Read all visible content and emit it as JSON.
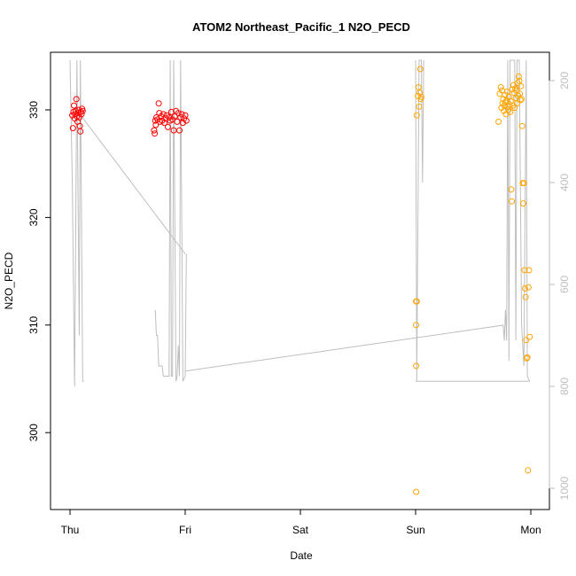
{
  "chart_data": {
    "type": "scatter",
    "title": "ATOM2 Northeast_Pacific_1 N2O_PECD",
    "xlabel": "Date",
    "ylabel": "N2O_PECD",
    "x_ticks": [
      "Thu",
      "Fri",
      "Sat",
      "Sun",
      "Mon"
    ],
    "ylim": [
      292.5,
      335
    ],
    "y_ticks": [
      300,
      310,
      320,
      330
    ],
    "secondary_axis": {
      "side": "right",
      "reversed": true,
      "ylim": [
        1020,
        160
      ],
      "ticks": [
        200,
        400,
        600,
        800,
        1000
      ],
      "color": "#bebebe"
    },
    "grid": false,
    "colors": {
      "red": "#ff0000",
      "orange": "#ffa500",
      "trace": "#bebebe"
    },
    "points": [
      {
        "x": 0.02,
        "y": 329.5,
        "c": "red"
      },
      {
        "x": 0.025,
        "y": 328.3,
        "c": "red"
      },
      {
        "x": 0.03,
        "y": 329.8,
        "c": "red"
      },
      {
        "x": 0.035,
        "y": 330.4,
        "c": "red"
      },
      {
        "x": 0.04,
        "y": 329.2,
        "c": "red"
      },
      {
        "x": 0.045,
        "y": 329.6,
        "c": "red"
      },
      {
        "x": 0.05,
        "y": 329.9,
        "c": "red"
      },
      {
        "x": 0.055,
        "y": 331.0,
        "c": "red"
      },
      {
        "x": 0.06,
        "y": 329.4,
        "c": "red"
      },
      {
        "x": 0.065,
        "y": 328.9,
        "c": "red"
      },
      {
        "x": 0.07,
        "y": 329.7,
        "c": "red"
      },
      {
        "x": 0.075,
        "y": 330.0,
        "c": "red"
      },
      {
        "x": 0.08,
        "y": 329.3,
        "c": "red"
      },
      {
        "x": 0.085,
        "y": 328.5,
        "c": "red"
      },
      {
        "x": 0.09,
        "y": 328.0,
        "c": "red"
      },
      {
        "x": 0.095,
        "y": 329.8,
        "c": "red"
      },
      {
        "x": 0.1,
        "y": 329.6,
        "c": "red"
      },
      {
        "x": 0.105,
        "y": 330.1,
        "c": "red"
      },
      {
        "x": 0.11,
        "y": 329.9,
        "c": "red"
      },
      {
        "x": 0.73,
        "y": 328.1,
        "c": "red"
      },
      {
        "x": 0.735,
        "y": 327.8,
        "c": "red"
      },
      {
        "x": 0.74,
        "y": 329.0,
        "c": "red"
      },
      {
        "x": 0.745,
        "y": 328.6,
        "c": "red"
      },
      {
        "x": 0.75,
        "y": 329.3,
        "c": "red"
      },
      {
        "x": 0.76,
        "y": 329.1,
        "c": "red"
      },
      {
        "x": 0.77,
        "y": 330.6,
        "c": "red"
      },
      {
        "x": 0.775,
        "y": 329.7,
        "c": "red"
      },
      {
        "x": 0.78,
        "y": 328.9,
        "c": "red"
      },
      {
        "x": 0.79,
        "y": 329.4,
        "c": "red"
      },
      {
        "x": 0.8,
        "y": 329.0,
        "c": "red"
      },
      {
        "x": 0.81,
        "y": 329.6,
        "c": "red"
      },
      {
        "x": 0.82,
        "y": 328.8,
        "c": "red"
      },
      {
        "x": 0.83,
        "y": 329.2,
        "c": "red"
      },
      {
        "x": 0.84,
        "y": 329.5,
        "c": "red"
      },
      {
        "x": 0.85,
        "y": 328.4,
        "c": "red"
      },
      {
        "x": 0.86,
        "y": 329.3,
        "c": "red"
      },
      {
        "x": 0.87,
        "y": 329.0,
        "c": "red"
      },
      {
        "x": 0.88,
        "y": 329.8,
        "c": "red"
      },
      {
        "x": 0.89,
        "y": 329.1,
        "c": "red"
      },
      {
        "x": 0.9,
        "y": 328.1,
        "c": "red"
      },
      {
        "x": 0.91,
        "y": 329.4,
        "c": "red"
      },
      {
        "x": 0.92,
        "y": 329.9,
        "c": "red"
      },
      {
        "x": 0.93,
        "y": 328.9,
        "c": "red"
      },
      {
        "x": 0.94,
        "y": 329.7,
        "c": "red"
      },
      {
        "x": 0.95,
        "y": 328.1,
        "c": "red"
      },
      {
        "x": 0.96,
        "y": 329.3,
        "c": "red"
      },
      {
        "x": 0.97,
        "y": 329.6,
        "c": "red"
      },
      {
        "x": 0.98,
        "y": 328.8,
        "c": "red"
      },
      {
        "x": 0.99,
        "y": 329.2,
        "c": "red"
      },
      {
        "x": 1.0,
        "y": 329.5,
        "c": "red"
      },
      {
        "x": 1.01,
        "y": 329.0,
        "c": "red"
      },
      {
        "x": 3.005,
        "y": 294.5,
        "c": "orange"
      },
      {
        "x": 3.005,
        "y": 306.2,
        "c": "orange"
      },
      {
        "x": 3.005,
        "y": 310.0,
        "c": "orange"
      },
      {
        "x": 3.005,
        "y": 312.2,
        "c": "orange"
      },
      {
        "x": 3.01,
        "y": 312.2,
        "c": "orange"
      },
      {
        "x": 3.01,
        "y": 329.5,
        "c": "orange"
      },
      {
        "x": 3.02,
        "y": 331.3,
        "c": "orange"
      },
      {
        "x": 3.025,
        "y": 332.1,
        "c": "orange"
      },
      {
        "x": 3.03,
        "y": 330.3,
        "c": "orange"
      },
      {
        "x": 3.035,
        "y": 331.6,
        "c": "orange"
      },
      {
        "x": 3.04,
        "y": 333.8,
        "c": "orange"
      },
      {
        "x": 3.045,
        "y": 331.0,
        "c": "orange"
      },
      {
        "x": 3.05,
        "y": 331.2,
        "c": "orange"
      },
      {
        "x": 3.72,
        "y": 328.9,
        "c": "orange"
      },
      {
        "x": 3.73,
        "y": 331.5,
        "c": "orange"
      },
      {
        "x": 3.74,
        "y": 332.1,
        "c": "orange"
      },
      {
        "x": 3.745,
        "y": 330.2,
        "c": "orange"
      },
      {
        "x": 3.75,
        "y": 331.8,
        "c": "orange"
      },
      {
        "x": 3.755,
        "y": 330.6,
        "c": "orange"
      },
      {
        "x": 3.76,
        "y": 331.0,
        "c": "orange"
      },
      {
        "x": 3.765,
        "y": 329.9,
        "c": "orange"
      },
      {
        "x": 3.77,
        "y": 330.4,
        "c": "orange"
      },
      {
        "x": 3.775,
        "y": 331.4,
        "c": "orange"
      },
      {
        "x": 3.78,
        "y": 330.7,
        "c": "orange"
      },
      {
        "x": 3.785,
        "y": 329.6,
        "c": "orange"
      },
      {
        "x": 3.79,
        "y": 330.9,
        "c": "orange"
      },
      {
        "x": 3.795,
        "y": 331.7,
        "c": "orange"
      },
      {
        "x": 3.8,
        "y": 330.3,
        "c": "orange"
      },
      {
        "x": 3.805,
        "y": 330.0,
        "c": "orange"
      },
      {
        "x": 3.81,
        "y": 331.2,
        "c": "orange"
      },
      {
        "x": 3.815,
        "y": 330.5,
        "c": "orange"
      },
      {
        "x": 3.82,
        "y": 329.8,
        "c": "orange"
      },
      {
        "x": 3.825,
        "y": 330.8,
        "c": "orange"
      },
      {
        "x": 3.83,
        "y": 322.6,
        "c": "orange"
      },
      {
        "x": 3.835,
        "y": 321.5,
        "c": "orange"
      },
      {
        "x": 3.84,
        "y": 331.9,
        "c": "orange"
      },
      {
        "x": 3.845,
        "y": 330.4,
        "c": "orange"
      },
      {
        "x": 3.85,
        "y": 332.3,
        "c": "orange"
      },
      {
        "x": 3.855,
        "y": 331.6,
        "c": "orange"
      },
      {
        "x": 3.86,
        "y": 330.2,
        "c": "orange"
      },
      {
        "x": 3.865,
        "y": 332.0,
        "c": "orange"
      },
      {
        "x": 3.87,
        "y": 331.1,
        "c": "orange"
      },
      {
        "x": 3.875,
        "y": 331.8,
        "c": "orange"
      },
      {
        "x": 3.88,
        "y": 330.6,
        "c": "orange"
      },
      {
        "x": 3.885,
        "y": 332.5,
        "c": "orange"
      },
      {
        "x": 3.89,
        "y": 331.3,
        "c": "orange"
      },
      {
        "x": 3.895,
        "y": 333.1,
        "c": "orange"
      },
      {
        "x": 3.9,
        "y": 332.7,
        "c": "orange"
      },
      {
        "x": 3.905,
        "y": 331.5,
        "c": "orange"
      },
      {
        "x": 3.91,
        "y": 330.9,
        "c": "orange"
      },
      {
        "x": 3.915,
        "y": 332.2,
        "c": "orange"
      },
      {
        "x": 3.92,
        "y": 331.0,
        "c": "orange"
      },
      {
        "x": 3.925,
        "y": 328.5,
        "c": "orange"
      },
      {
        "x": 3.93,
        "y": 323.2,
        "c": "orange"
      },
      {
        "x": 3.935,
        "y": 321.3,
        "c": "orange"
      },
      {
        "x": 3.94,
        "y": 323.2,
        "c": "orange"
      },
      {
        "x": 3.945,
        "y": 315.1,
        "c": "orange"
      },
      {
        "x": 3.95,
        "y": 313.4,
        "c": "orange"
      },
      {
        "x": 3.955,
        "y": 312.6,
        "c": "orange"
      },
      {
        "x": 3.96,
        "y": 308.6,
        "c": "orange"
      },
      {
        "x": 3.965,
        "y": 306.9,
        "c": "orange"
      },
      {
        "x": 3.97,
        "y": 307.0,
        "c": "orange"
      },
      {
        "x": 3.975,
        "y": 296.5,
        "c": "orange"
      },
      {
        "x": 3.98,
        "y": 313.5,
        "c": "orange"
      },
      {
        "x": 3.985,
        "y": 315.1,
        "c": "orange"
      },
      {
        "x": 3.99,
        "y": 308.9,
        "c": "orange"
      }
    ],
    "trace_secondary": [
      [
        0.0,
        160
      ],
      [
        0.02,
        400
      ],
      [
        0.04,
        800
      ],
      [
        0.06,
        160
      ],
      [
        0.08,
        700
      ],
      [
        0.09,
        160
      ],
      [
        0.11,
        790
      ],
      [
        0.12,
        790
      ],
      [
        0.1,
        270
      ],
      [
        1.0,
        540
      ],
      [
        0.74,
        650
      ],
      [
        0.75,
        700
      ],
      [
        0.76,
        700
      ],
      [
        0.77,
        760
      ],
      [
        0.8,
        760
      ],
      [
        0.81,
        780
      ],
      [
        0.83,
        780
      ],
      [
        0.86,
        780
      ],
      [
        0.87,
        160
      ],
      [
        0.88,
        780
      ],
      [
        0.89,
        780
      ],
      [
        0.9,
        160
      ],
      [
        0.92,
        790
      ],
      [
        0.93,
        780
      ],
      [
        0.94,
        720
      ],
      [
        0.95,
        780
      ],
      [
        0.96,
        160
      ],
      [
        0.98,
        790
      ],
      [
        1.0,
        780
      ],
      [
        1.01,
        540
      ]
    ]
  }
}
